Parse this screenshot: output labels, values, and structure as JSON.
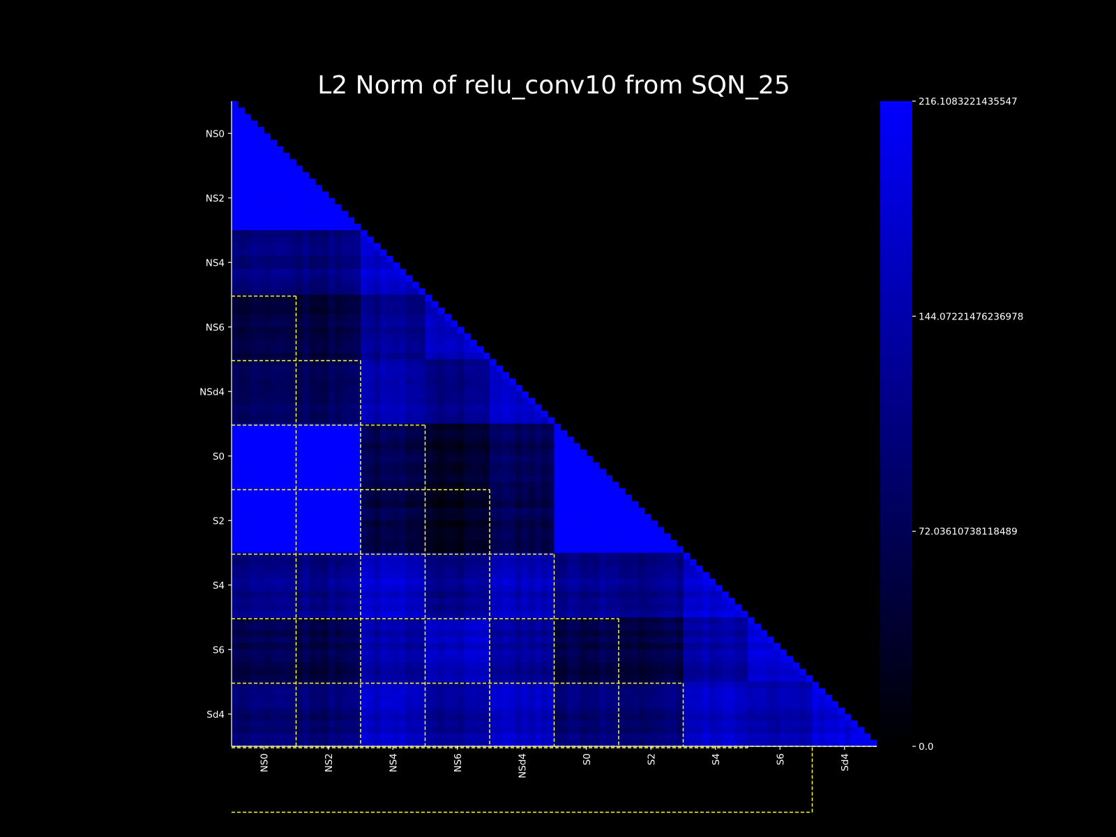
{
  "chart_data": {
    "type": "heatmap",
    "title": "L2 Norm of relu_conv10 from SQN_25",
    "shape": "lower-triangle",
    "n_cells": 100,
    "groups": [
      {
        "name": "NS0",
        "start": 0,
        "end": 10,
        "tick": "NS0"
      },
      {
        "name": "NS2",
        "start": 10,
        "end": 20,
        "tick": "NS2"
      },
      {
        "name": "NS4",
        "start": 20,
        "end": 30,
        "tick": "NS4"
      },
      {
        "name": "NS6",
        "start": 30,
        "end": 40,
        "tick": "NS6"
      },
      {
        "name": "NSd4",
        "start": 40,
        "end": 50,
        "tick": "NSd4"
      },
      {
        "name": "S0",
        "start": 50,
        "end": 60,
        "tick": "S0"
      },
      {
        "name": "S2",
        "start": 60,
        "end": 70,
        "tick": "S2"
      },
      {
        "name": "S4",
        "start": 70,
        "end": 80,
        "tick": "S4"
      },
      {
        "name": "S6",
        "start": 80,
        "end": 90,
        "tick": "S6"
      },
      {
        "name": "Sd4",
        "start": 90,
        "end": 100,
        "tick": "Sd4"
      }
    ],
    "x_tick_labels": [
      "NS0",
      "NS2",
      "NS4",
      "NS6",
      "NSd4",
      "S0",
      "S2",
      "S4",
      "S6",
      "Sd4"
    ],
    "y_tick_labels": [
      "NS0",
      "NS2",
      "NS4",
      "NS6",
      "NSd4",
      "S0",
      "S2",
      "S4",
      "S6",
      "Sd4"
    ],
    "block_values_approx": [
      [
        216
      ],
      [
        216,
        216
      ],
      [
        110,
        105,
        170
      ],
      [
        60,
        55,
        120,
        165
      ],
      [
        85,
        80,
        150,
        120,
        170
      ],
      [
        216,
        216,
        70,
        40,
        80,
        216
      ],
      [
        216,
        216,
        60,
        30,
        70,
        216,
        216
      ],
      [
        120,
        115,
        170,
        120,
        160,
        120,
        115,
        180
      ],
      [
        70,
        60,
        140,
        165,
        130,
        60,
        55,
        140,
        175
      ],
      [
        100,
        95,
        165,
        130,
        165,
        100,
        95,
        170,
        140,
        185
      ]
    ],
    "colorbar": {
      "min": 0.0,
      "max": 216.1083221435547,
      "tick_values": [
        0.0,
        72.03610738118489,
        144.07221476236978,
        216.1083221435547
      ],
      "tick_labels": [
        "216.1083221435547",
        "144.07221476236978",
        "72.03610738118489",
        "0.0"
      ],
      "colormap": [
        "#000000",
        "#0000ff"
      ]
    },
    "grid_line_color": "#ffff33",
    "background_color": "#000000"
  }
}
